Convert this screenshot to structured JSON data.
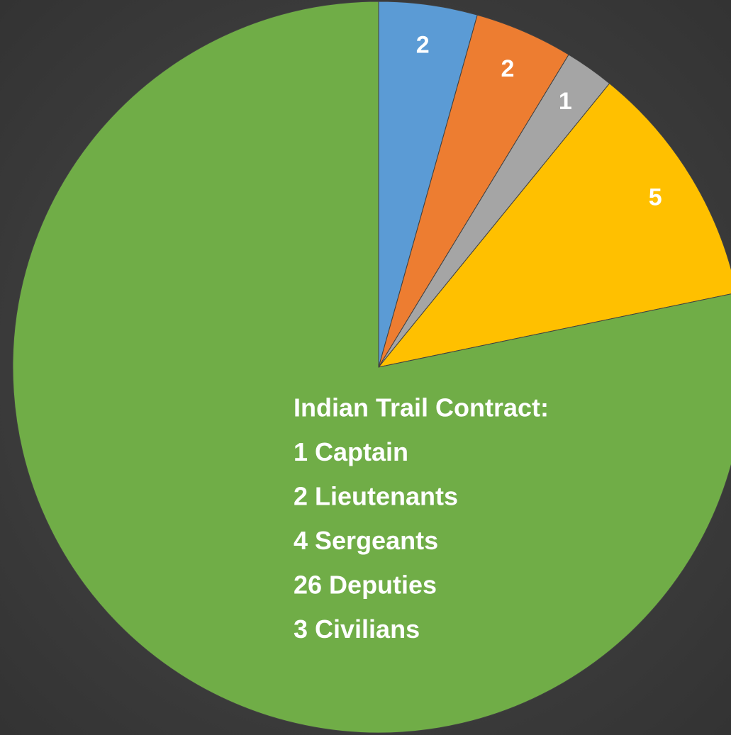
{
  "chart_data": {
    "type": "pie",
    "values": [
      2,
      2,
      1,
      5,
      36
    ],
    "value_labels": [
      "2",
      "2",
      "1",
      "5",
      null
    ],
    "colors": [
      "#5b9bd5",
      "#ed7d31",
      "#a5a5a5",
      "#ffc000",
      "#70ad47"
    ],
    "annotation": [
      "Indian Trail Contract:",
      "1 Captain",
      "2 Lieutenants",
      "4 Sergeants",
      "26 Deputies",
      "3 Civilians"
    ]
  }
}
